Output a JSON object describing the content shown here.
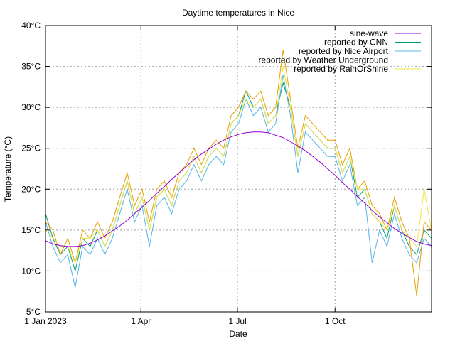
{
  "chart_data": {
    "type": "line",
    "title": "Daytime temperatures in Nice",
    "xlabel": "Date",
    "ylabel": "Temperature (°C)",
    "xlim": [
      "2023-01-01",
      "2023-12-31"
    ],
    "ylim": [
      5,
      40
    ],
    "x_ticks": [
      {
        "date": "2023-01-01",
        "label": "1 Jan 2023"
      },
      {
        "date": "2023-04-01",
        "label": "1 Apr"
      },
      {
        "date": "2023-07-01",
        "label": "1 Jul"
      },
      {
        "date": "2023-10-01",
        "label": "1 Oct"
      }
    ],
    "y_ticks": [
      {
        "value": 5,
        "label": "5°C"
      },
      {
        "value": 10,
        "label": "10°C"
      },
      {
        "value": 15,
        "label": "15°C"
      },
      {
        "value": 20,
        "label": "20°C"
      },
      {
        "value": 25,
        "label": "25°C"
      },
      {
        "value": 30,
        "label": "30°C"
      },
      {
        "value": 35,
        "label": "35°C"
      },
      {
        "value": 40,
        "label": "40°C"
      }
    ],
    "grid": true,
    "legend_position": "top-right",
    "x_dates_weekly_from": "2023-01-01",
    "series": [
      {
        "name": "sine-wave",
        "color": "#9400d3",
        "values": [
          13.7,
          13.3,
          13.1,
          13.0,
          13.0,
          13.1,
          13.4,
          13.8,
          14.3,
          14.9,
          15.5,
          16.2,
          17.0,
          17.8,
          18.6,
          19.5,
          20.3,
          21.2,
          22.0,
          22.8,
          23.6,
          24.3,
          24.9,
          25.5,
          26.0,
          26.4,
          26.7,
          26.9,
          27.0,
          27.0,
          26.9,
          26.6,
          26.3,
          25.8,
          25.3,
          24.7,
          24.0,
          23.3,
          22.5,
          21.7,
          20.8,
          20.0,
          19.1,
          18.3,
          17.4,
          16.6,
          15.9,
          15.2,
          14.6,
          14.1,
          13.6,
          13.3,
          13.1
        ]
      },
      {
        "name": "reported by CNN",
        "color": "#009e73",
        "values": [
          17,
          14,
          12,
          13,
          10,
          14,
          13,
          15,
          13,
          15,
          18,
          21,
          17,
          19,
          15,
          19,
          20,
          18,
          21,
          22,
          24,
          22,
          24,
          25,
          24,
          28,
          29,
          32,
          30,
          31,
          28,
          29,
          33,
          30,
          24,
          28,
          27,
          26,
          25,
          25,
          22,
          24,
          19,
          20,
          17,
          16,
          14,
          18,
          15,
          13,
          12,
          15,
          14
        ]
      },
      {
        "name": "reported by Nice Airport",
        "color": "#56b4e9",
        "values": [
          16,
          13,
          11,
          12,
          8,
          13,
          12,
          14,
          12,
          14,
          17,
          20,
          16,
          18,
          13,
          18,
          19,
          17,
          20,
          21,
          23,
          21,
          23,
          24,
          23,
          27,
          28,
          31,
          29,
          30,
          27,
          28,
          34,
          29,
          22,
          27,
          26,
          25,
          24,
          24,
          21,
          23,
          18,
          19,
          11,
          15,
          13,
          17,
          14,
          12,
          11,
          14,
          13
        ]
      },
      {
        "name": "reported by Weather Underground",
        "color": "#e69f00",
        "values": [
          16,
          15,
          12,
          14,
          11,
          15,
          14,
          16,
          14,
          16,
          19,
          22,
          18,
          20,
          16,
          20,
          21,
          19,
          22,
          23,
          25,
          23,
          25,
          26,
          25,
          29,
          30,
          32,
          31,
          32,
          29,
          30,
          37,
          31,
          25,
          29,
          28,
          27,
          26,
          26,
          23,
          25,
          20,
          21,
          18,
          17,
          15,
          19,
          16,
          14,
          7,
          16,
          15
        ]
      },
      {
        "name": "reported by RainOrShine",
        "color": "#f0e442",
        "values": [
          15,
          14,
          13,
          13,
          11,
          14,
          14,
          15,
          13,
          15,
          18,
          21,
          17,
          19,
          15,
          19,
          20,
          18,
          21,
          22,
          24,
          22,
          24,
          25,
          24,
          28,
          29,
          31,
          30,
          31,
          28,
          29,
          35,
          30,
          24,
          28,
          27,
          26,
          25,
          25,
          22,
          24,
          20,
          20,
          17,
          16,
          15,
          18,
          15,
          14,
          13,
          20,
          15
        ]
      }
    ]
  }
}
